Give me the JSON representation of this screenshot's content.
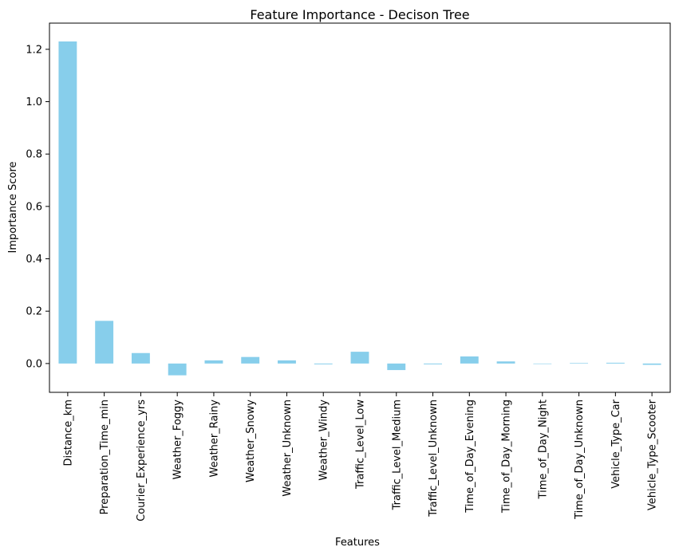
{
  "chart_data": {
    "type": "bar",
    "title": "Feature Importance - Decison Tree",
    "xlabel": "Features",
    "ylabel": "Importance Score",
    "categories": [
      "Distance_km",
      "Preparation_Time_min",
      "Courier_Experience_yrs",
      "Weather_Foggy",
      "Weather_Rainy",
      "Weather_Snowy",
      "Weather_Unknown",
      "Weather_Windy",
      "Traffic_Level_Low",
      "Traffic_Level_Medium",
      "Traffic_Level_Unknown",
      "Time_of_Day_Evening",
      "Time_of_Day_Morning",
      "Time_of_Day_Night",
      "Time_of_Day_Unknown",
      "Vehicle_Type_Car",
      "Vehicle_Type_Scooter"
    ],
    "values": [
      1.23,
      0.163,
      0.04,
      -0.045,
      0.012,
      0.025,
      0.012,
      -0.003,
      0.045,
      -0.025,
      -0.003,
      0.027,
      0.008,
      0.0,
      0.002,
      0.003,
      -0.005
    ],
    "ylim": [
      -0.11,
      1.3
    ],
    "yticks": [
      0.0,
      0.2,
      0.4,
      0.6,
      0.8,
      1.0,
      1.2
    ],
    "ytick_labels": [
      "0.0",
      "0.2",
      "0.4",
      "0.6",
      "0.8",
      "1.0",
      "1.2"
    ],
    "grid": false,
    "bar_color": "#87ceeb"
  }
}
